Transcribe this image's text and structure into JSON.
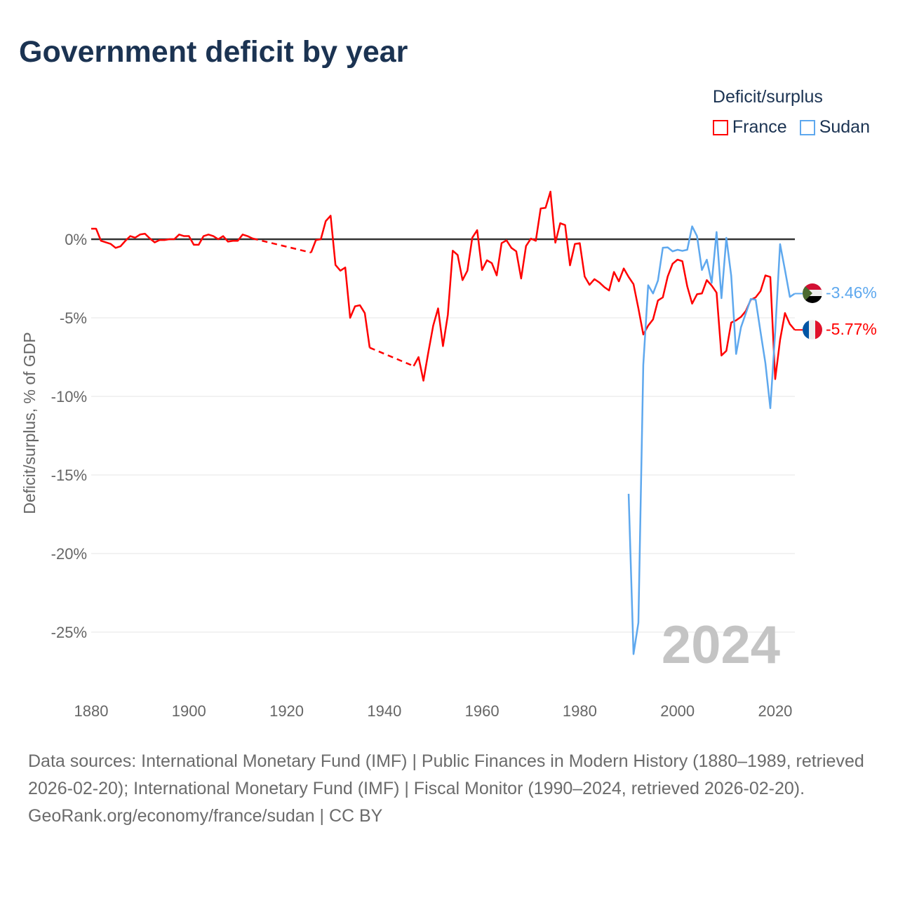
{
  "title": "Government deficit by year",
  "legend": {
    "title": "Deficit/surplus",
    "items": [
      {
        "label": "France",
        "color": "#ff0000"
      },
      {
        "label": "Sudan",
        "color": "#5ea8ee"
      }
    ]
  },
  "watermark_year": "2024",
  "end_labels": {
    "sudan": "-3.46%",
    "france": "-5.77%"
  },
  "footer": {
    "sources": "Data sources: International Monetary Fund (IMF) | Public Finances in Modern History (1880–1989, retrieved 2026-02-20); International Monetary Fund (IMF) | Fiscal Monitor (1990–2024, retrieved 2026-02-20).",
    "credit": "GeoRank.org/economy/france/sudan | CC BY"
  },
  "chart_data": {
    "type": "line",
    "title": "Government deficit by year",
    "xlabel": "",
    "ylabel": "Deficit/surplus, % of GDP",
    "xlim": [
      1880,
      2024
    ],
    "ylim": [
      -27.5,
      3.5
    ],
    "x_ticks": [
      "1880",
      "1900",
      "1920",
      "1940",
      "1960",
      "1980",
      "2000",
      "2020"
    ],
    "y_ticks": [
      {
        "value": 0,
        "label": "0%"
      },
      {
        "value": -5,
        "label": "-5%"
      },
      {
        "value": -10,
        "label": "-10%"
      },
      {
        "value": -15,
        "label": "-15%"
      },
      {
        "value": -20,
        "label": "-20%"
      },
      {
        "value": -25,
        "label": "-25%"
      }
    ],
    "legend_position": "top-right",
    "series": [
      {
        "name": "France",
        "color": "#ff0000",
        "segments": [
          {
            "start": 1880,
            "values": [
              0.67,
              0.67,
              -0.1,
              -0.2,
              -0.3,
              -0.55,
              -0.45,
              -0.1,
              0.2,
              0.1,
              0.3,
              0.35,
              0.05,
              -0.2,
              -0.05,
              -0.05,
              0,
              0,
              0.3,
              0.2,
              0.2,
              -0.35,
              -0.35,
              0.2,
              0.3,
              0.2,
              0,
              0.2,
              -0.15,
              -0.1,
              -0.1,
              0.3,
              0.2,
              0.05
            ]
          },
          {
            "start": 1925,
            "values": [
              -0.85,
              -0.05,
              0,
              1.15,
              1.5,
              -1.64,
              -2.0,
              -1.8,
              -5.0,
              -4.27,
              -4.2,
              -4.7,
              -6.9
            ]
          },
          {
            "start": 1946,
            "values": [
              -8.07,
              -7.5,
              -9.0,
              -7.2,
              -5.5,
              -4.4,
              -6.8,
              -4.8,
              -0.73,
              -1.0,
              -2.6,
              -2.0,
              0.1,
              0.58,
              -1.96,
              -1.34,
              -1.52,
              -2.3,
              -0.25,
              -0.07,
              -0.55,
              -0.77,
              -2.5,
              -0.43,
              0.04,
              -0.1,
              1.96,
              2.0,
              3.03,
              -0.22,
              1.02,
              0.9,
              -1.66,
              -0.3,
              -0.25,
              -2.37,
              -2.9,
              -2.54,
              -2.75,
              -3.04,
              -3.26,
              -2.08,
              -2.68,
              -1.86,
              -2.4,
              -2.86,
              -4.4,
              -6.06,
              -5.5,
              -5.1,
              -3.9,
              -3.7,
              -2.37,
              -1.56,
              -1.3,
              -1.4,
              -3.0,
              -4.1,
              -3.5,
              -3.45,
              -2.6,
              -2.95,
              -3.4,
              -7.4,
              -7.1,
              -5.3,
              -5.16,
              -4.94,
              -4.56,
              -3.85,
              -3.7,
              -3.3,
              -2.3,
              -2.4,
              -8.9,
              -6.4,
              -4.7,
              -5.4,
              -5.77
            ]
          }
        ]
      },
      {
        "name": "Sudan",
        "color": "#5ea8ee",
        "segments": [
          {
            "start": 1990,
            "values": [
              -16.2,
              -26.4,
              -24.4,
              -8.0,
              -2.93,
              -3.45,
              -2.63,
              -0.54,
              -0.52,
              -0.77,
              -0.67,
              -0.74,
              -0.67,
              0.82,
              0.2,
              -1.96,
              -1.3,
              -2.78,
              0.46,
              -3.75,
              0.09,
              -2.33,
              -7.3,
              -5.6,
              -4.7,
              -3.8,
              -3.85,
              -5.9,
              -7.9,
              -10.75,
              -5.9,
              -0.31,
              -1.96,
              -3.67,
              -3.46
            ]
          }
        ]
      }
    ]
  }
}
